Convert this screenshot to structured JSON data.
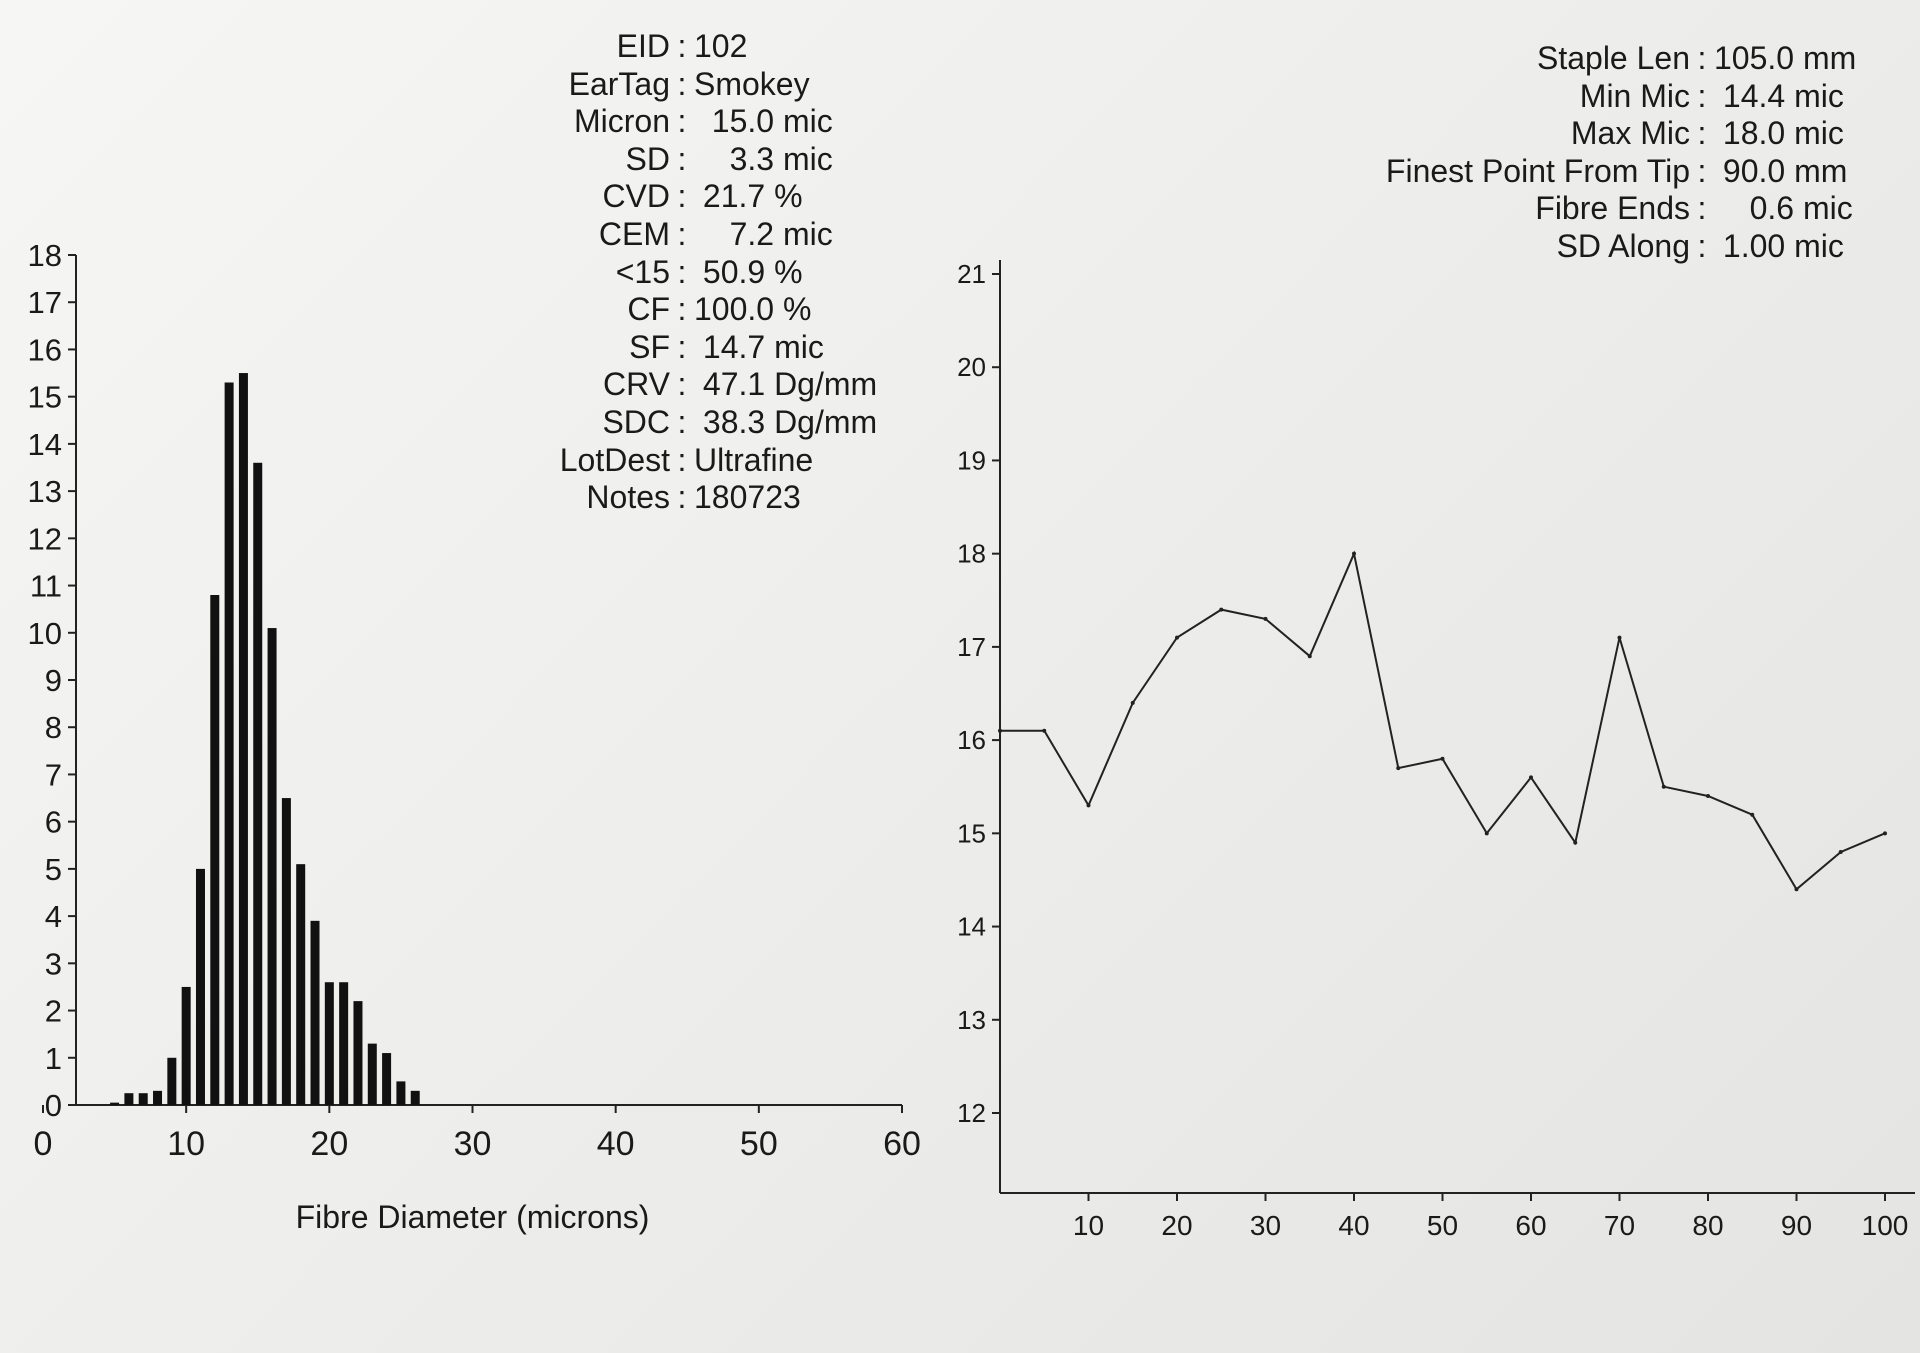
{
  "left_stats": [
    {
      "label": "EID",
      "value": "102"
    },
    {
      "label": "EarTag",
      "value": "Smokey"
    },
    {
      "label": "Micron",
      "value": "  15.0 mic"
    },
    {
      "label": "SD",
      "value": "    3.3 mic"
    },
    {
      "label": "CVD",
      "value": " 21.7 %"
    },
    {
      "label": "CEM",
      "value": "    7.2 mic"
    },
    {
      "label": "<15",
      "value": " 50.9 %"
    },
    {
      "label": "CF",
      "value": "100.0 %"
    },
    {
      "label": "SF",
      "value": " 14.7 mic"
    },
    {
      "label": "CRV",
      "value": " 47.1 Dg/mm"
    },
    {
      "label": "SDC",
      "value": " 38.3 Dg/mm"
    },
    {
      "label": "LotDest",
      "value": "Ultrafine"
    },
    {
      "label": "Notes",
      "value": "180723"
    }
  ],
  "right_stats": [
    {
      "label": "Staple Len",
      "value": "105.0 mm"
    },
    {
      "label": "Min Mic",
      "value": " 14.4 mic"
    },
    {
      "label": "Max Mic",
      "value": " 18.0 mic"
    },
    {
      "label": "Finest Point From Tip",
      "value": " 90.0 mm"
    },
    {
      "label": "Fibre Ends",
      "value": "    0.6 mic"
    },
    {
      "label": "SD Along",
      "value": " 1.00 mic"
    }
  ],
  "separator": ":",
  "chart_data": [
    {
      "type": "bar",
      "title": "",
      "xlabel": "Fibre Diameter (microns)",
      "ylabel": "",
      "xlim": [
        0,
        60
      ],
      "ylim": [
        0,
        18
      ],
      "x_ticks": [
        "0",
        "10",
        "20",
        "30",
        "40",
        "50",
        "60"
      ],
      "y_ticks": [
        "0",
        "1",
        "2",
        "3",
        "4",
        "5",
        "6",
        "7",
        "8",
        "9",
        "10",
        "11",
        "12",
        "13",
        "14",
        "15",
        "16",
        "17",
        "18"
      ],
      "categories": [
        5,
        6,
        7,
        8,
        9,
        10,
        11,
        12,
        13,
        14,
        15,
        16,
        17,
        18,
        19,
        20,
        21,
        22,
        23,
        24,
        25,
        26
      ],
      "values": [
        0.05,
        0.25,
        0.25,
        0.3,
        1.0,
        2.5,
        5.0,
        10.8,
        15.3,
        15.5,
        13.6,
        10.1,
        6.5,
        5.1,
        3.9,
        2.6,
        2.6,
        2.2,
        1.3,
        1.1,
        0.5,
        0.3
      ],
      "grid": false
    },
    {
      "type": "line",
      "title": "",
      "xlabel": "",
      "ylabel": "",
      "xlim": [
        0,
        100
      ],
      "ylim": [
        11.2,
        21
      ],
      "x_ticks": [
        "10",
        "20",
        "30",
        "40",
        "50",
        "60",
        "70",
        "80",
        "90",
        "100"
      ],
      "y_ticks": [
        "12",
        "13",
        "14",
        "15",
        "16",
        "17",
        "18",
        "19",
        "20",
        "21"
      ],
      "x": [
        0,
        5,
        10,
        15,
        20,
        25,
        30,
        35,
        40,
        45,
        50,
        55,
        60,
        65,
        70,
        75,
        80,
        85,
        90,
        95,
        100
      ],
      "values": [
        16.1,
        16.1,
        15.3,
        16.4,
        17.1,
        17.4,
        17.3,
        16.9,
        18.0,
        15.7,
        15.8,
        15.0,
        15.6,
        14.9,
        17.1,
        15.5,
        15.4,
        15.2,
        14.4,
        14.8,
        15.0
      ],
      "grid": false
    }
  ]
}
